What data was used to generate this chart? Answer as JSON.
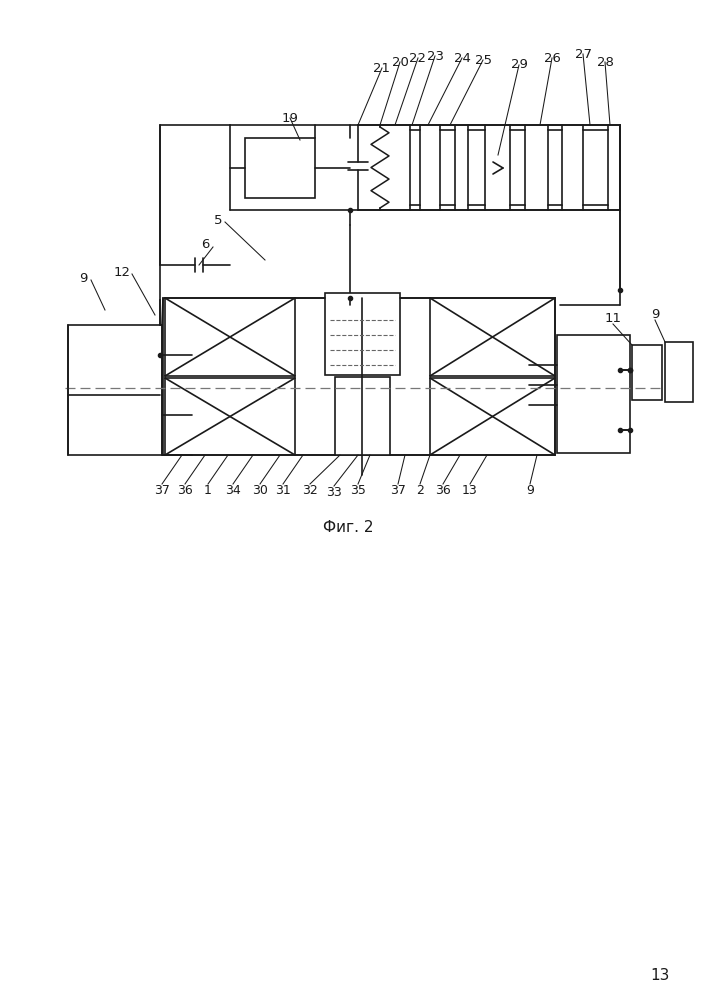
{
  "fig_label": "Фиг. 2",
  "page_number": "13",
  "bg_color": "#ffffff",
  "line_color": "#1a1a1a",
  "figsize": [
    7.07,
    10.0
  ],
  "dpi": 100
}
